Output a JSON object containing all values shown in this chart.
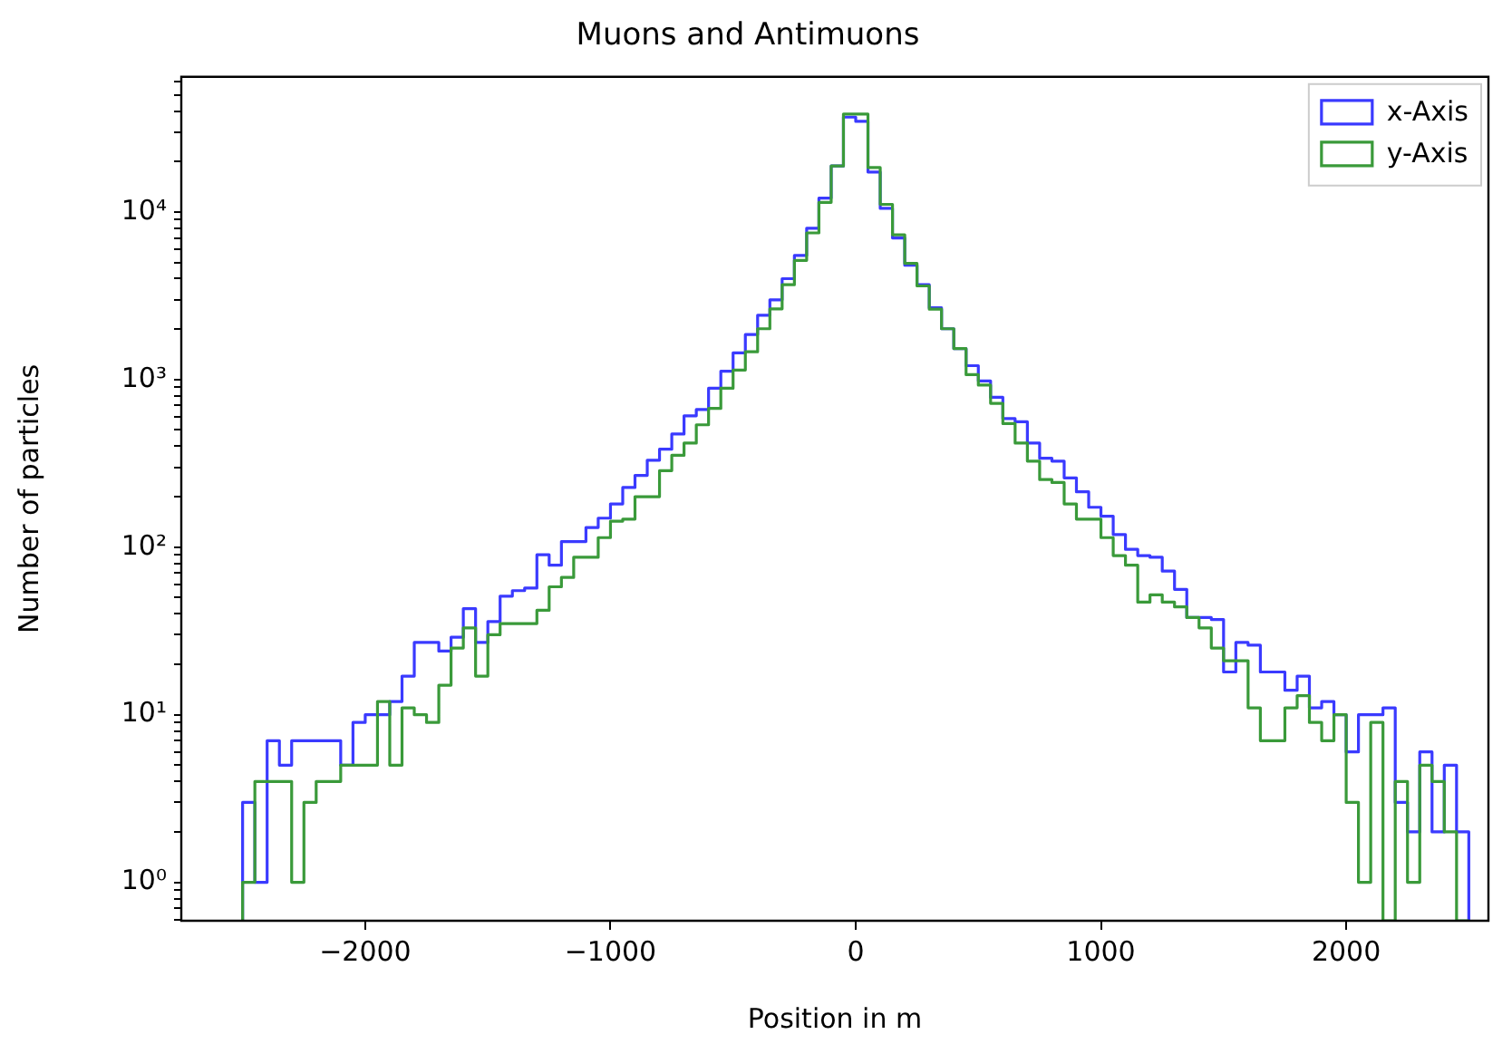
{
  "chart_data": {
    "type": "histogram",
    "title": "Muons and Antimuons",
    "xlabel": "Position in m",
    "ylabel": "Number of particles",
    "bins": [
      -2500,
      -2450,
      -2400,
      -2350,
      -2300,
      -2250,
      -2200,
      -2150,
      -2100,
      -2050,
      -2000,
      -1950,
      -1900,
      -1850,
      -1800,
      -1750,
      -1700,
      -1650,
      -1600,
      -1550,
      -1500,
      -1450,
      -1400,
      -1350,
      -1300,
      -1250,
      -1200,
      -1150,
      -1100,
      -1050,
      -1000,
      -950,
      -900,
      -850,
      -800,
      -750,
      -700,
      -650,
      -600,
      -550,
      -500,
      -450,
      -400,
      -350,
      -300,
      -250,
      -200,
      -150,
      -100,
      -50,
      0,
      50,
      100,
      150,
      200,
      250,
      300,
      350,
      400,
      450,
      500,
      550,
      600,
      650,
      700,
      750,
      800,
      850,
      900,
      950,
      1000,
      1050,
      1100,
      1150,
      1200,
      1250,
      1300,
      1350,
      1400,
      1450,
      1500,
      1550,
      1600,
      1650,
      1700,
      1750,
      1800,
      1850,
      1900,
      1950,
      2000,
      2050,
      2100,
      2150,
      2200,
      2250,
      2300,
      2350,
      2400,
      2450,
      2500
    ],
    "series": [
      {
        "name": "x-Axis",
        "color": "#3a3aff",
        "values": [
          3,
          1,
          7,
          5,
          7,
          7,
          7,
          7,
          5,
          9,
          10,
          10,
          12,
          17,
          27,
          27,
          24,
          29,
          43,
          27,
          36,
          51,
          55,
          57,
          90,
          78,
          108,
          108,
          131,
          149,
          181,
          227,
          268,
          330,
          384,
          473,
          608,
          662,
          887,
          1122,
          1443,
          1855,
          2420,
          2990,
          4000,
          5500,
          8000,
          12100,
          18800,
          36800,
          34700,
          17300,
          10500,
          7000,
          4810,
          3680,
          2680,
          2010,
          1530,
          1210,
          982,
          783,
          585,
          560,
          418,
          339,
          326,
          259,
          214,
          173,
          153,
          119,
          97,
          89,
          87,
          72,
          56,
          38,
          38,
          37,
          18,
          27,
          26,
          18,
          18,
          14,
          17,
          11,
          12,
          10,
          6,
          10,
          10,
          11,
          3,
          2,
          6,
          2,
          5,
          2
        ]
      },
      {
        "name": "y-Axis",
        "color": "#3a9a3a",
        "values": [
          1,
          4,
          4,
          4,
          1,
          3,
          4,
          4,
          5,
          5,
          5,
          12,
          5,
          11,
          10,
          9,
          15,
          25,
          33,
          17,
          30,
          35,
          35,
          35,
          42,
          58,
          66,
          87,
          87,
          114,
          143,
          147,
          200,
          200,
          286,
          353,
          418,
          537,
          673,
          887,
          1140,
          1465,
          2010,
          2640,
          3680,
          5140,
          7500,
          11400,
          18800,
          38400,
          38400,
          18400,
          11100,
          7300,
          4930,
          3620,
          2630,
          2010,
          1530,
          1070,
          927,
          721,
          546,
          418,
          326,
          253,
          243,
          181,
          147,
          147,
          114,
          89,
          78,
          47,
          52,
          47,
          44,
          38,
          33,
          25,
          21,
          21,
          11,
          7,
          7,
          11,
          13,
          9,
          7,
          10,
          3,
          1,
          9,
          null,
          4,
          1,
          5,
          4,
          2,
          null
        ]
      }
    ],
    "log": "y",
    "xlim": [
      -2750,
      2580
    ],
    "ylim": [
      0.59,
      64000
    ],
    "xticks": [
      {
        "value": -2000,
        "label": "−2000"
      },
      {
        "value": -1000,
        "label": "−1000"
      },
      0,
      1000,
      2000
    ],
    "yticks": [
      {
        "value": 0.6,
        "label": null
      },
      {
        "value": 0.7,
        "label": null
      },
      {
        "value": 0.8,
        "label": null
      },
      {
        "value": 0.9,
        "label": null
      },
      {
        "value": 1,
        "label": "10⁰"
      },
      {
        "value": 2,
        "label": null
      },
      {
        "value": 3,
        "label": null
      },
      {
        "value": 4,
        "label": null
      },
      {
        "value": 5,
        "label": null
      },
      {
        "value": 6,
        "label": null
      },
      {
        "value": 7,
        "label": null
      },
      {
        "value": 8,
        "label": null
      },
      {
        "value": 9,
        "label": null
      },
      {
        "value": 10,
        "label": "10¹"
      },
      {
        "value": 20,
        "label": null
      },
      {
        "value": 30,
        "label": null
      },
      {
        "value": 40,
        "label": null
      },
      {
        "value": 50,
        "label": null
      },
      {
        "value": 60,
        "label": null
      },
      {
        "value": 70,
        "label": null
      },
      {
        "value": 80,
        "label": null
      },
      {
        "value": 90,
        "label": null
      },
      {
        "value": 100,
        "label": "10²"
      },
      {
        "value": 200,
        "label": null
      },
      {
        "value": 300,
        "label": null
      },
      {
        "value": 400,
        "label": null
      },
      {
        "value": 500,
        "label": null
      },
      {
        "value": 600,
        "label": null
      },
      {
        "value": 700,
        "label": null
      },
      {
        "value": 800,
        "label": null
      },
      {
        "value": 900,
        "label": null
      },
      {
        "value": 1000,
        "label": "10³"
      },
      {
        "value": 2000,
        "label": null
      },
      {
        "value": 3000,
        "label": null
      },
      {
        "value": 4000,
        "label": null
      },
      {
        "value": 5000,
        "label": null
      },
      {
        "value": 6000,
        "label": null
      },
      {
        "value": 7000,
        "label": null
      },
      {
        "value": 8000,
        "label": null
      },
      {
        "value": 9000,
        "label": null
      },
      {
        "value": 10000,
        "label": "10⁴"
      },
      {
        "value": 20000,
        "label": null
      },
      {
        "value": 30000,
        "label": null
      },
      {
        "value": 40000,
        "label": null
      },
      {
        "value": 50000,
        "label": null
      },
      {
        "value": 60000,
        "label": null
      }
    ],
    "legend": "top right"
  }
}
